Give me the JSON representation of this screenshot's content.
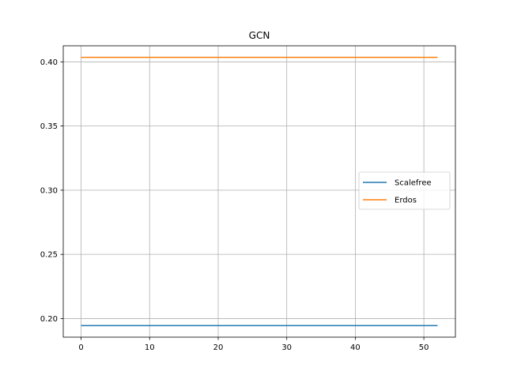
{
  "chart_data": {
    "type": "line",
    "title": "GCN",
    "xlabel": "",
    "ylabel": "",
    "xlim": [
      -2.6,
      54.6
    ],
    "ylim": [
      0.1855,
      0.4125
    ],
    "xticks": [
      0,
      10,
      20,
      30,
      40,
      50
    ],
    "yticks": [
      0.2,
      0.25,
      0.3,
      0.35,
      0.4
    ],
    "xtick_labels": [
      "0",
      "10",
      "20",
      "30",
      "40",
      "50"
    ],
    "ytick_labels": [
      "0.20",
      "0.25",
      "0.30",
      "0.35",
      "0.40"
    ],
    "grid": true,
    "legend_position": "center-right",
    "series": [
      {
        "name": "Scalefree",
        "color": "#1f77b4",
        "x": [
          0,
          52
        ],
        "y": [
          0.1945,
          0.1945
        ]
      },
      {
        "name": "Erdos",
        "color": "#ff7f0e",
        "x": [
          0,
          52
        ],
        "y": [
          0.4035,
          0.4035
        ]
      }
    ]
  }
}
